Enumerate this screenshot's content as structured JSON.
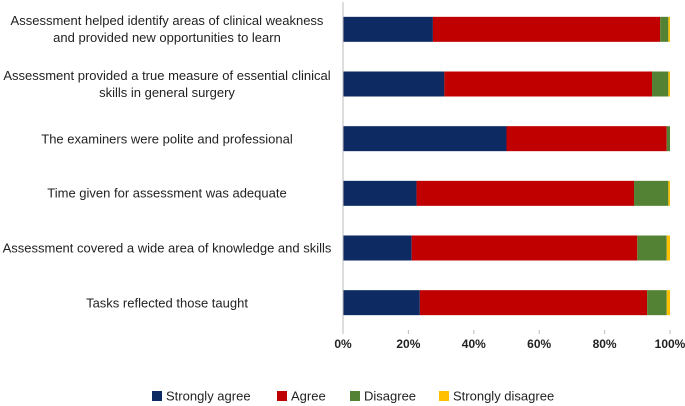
{
  "chart_data": {
    "type": "stacked_barh",
    "categories": [
      "Assessment helped identify areas of clinical weakness and provided new opportunities to learn",
      "Assessment provided a true measure of essential clinical skills in general surgery",
      "The examiners were polite and professional",
      "Time given for assessment was adequate",
      "Assessment covered a wide area of knowledge and skills",
      "Tasks reflected those taught"
    ],
    "series": [
      {
        "name": "Strongly agree",
        "color": "#0e2a63",
        "values": [
          27.5,
          31,
          50,
          22.5,
          21,
          23.5
        ]
      },
      {
        "name": "Agree",
        "color": "#c00000",
        "values": [
          69.5,
          63.5,
          49,
          66.5,
          69,
          69.5
        ]
      },
      {
        "name": "Disagree",
        "color": "#548235",
        "values": [
          2.5,
          5,
          1,
          10.5,
          9,
          6
        ]
      },
      {
        "name": "Strongly disagree",
        "color": "#ffc000",
        "values": [
          0.5,
          0.5,
          0,
          0.5,
          1,
          1
        ]
      }
    ],
    "xlim": [
      0,
      100
    ],
    "xticks": [
      {
        "value": 0,
        "label": "0%"
      },
      {
        "value": 20,
        "label": "20%"
      },
      {
        "value": 40,
        "label": "40%"
      },
      {
        "value": 60,
        "label": "60%"
      },
      {
        "value": 80,
        "label": "80%"
      },
      {
        "value": 100,
        "label": "100%"
      }
    ]
  }
}
